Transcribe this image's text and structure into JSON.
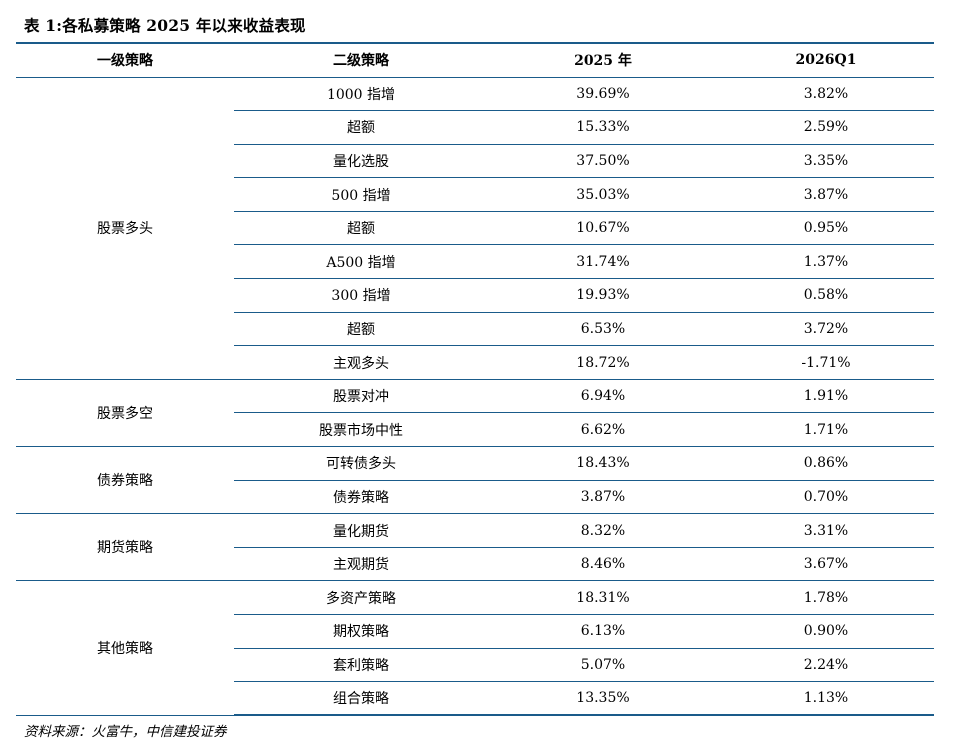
{
  "title": "表 1:各私募策略 2025 年以来收益表现",
  "headers": [
    "一级策略",
    "二级策略",
    "2025 年",
    "2026Q1"
  ],
  "groups": [
    {
      "name": "股票多头",
      "rows": [
        {
          "sub": "1000 指增",
          "y2025": "39.69%",
          "q1": "3.82%"
        },
        {
          "sub": "超额",
          "y2025": "15.33%",
          "q1": "2.59%"
        },
        {
          "sub": "量化选股",
          "y2025": "37.50%",
          "q1": "3.35%"
        },
        {
          "sub": "500 指增",
          "y2025": "35.03%",
          "q1": "3.87%"
        },
        {
          "sub": "超额",
          "y2025": "10.67%",
          "q1": "0.95%"
        },
        {
          "sub": "A500 指增",
          "y2025": "31.74%",
          "q1": "1.37%"
        },
        {
          "sub": "300 指增",
          "y2025": "19.93%",
          "q1": "0.58%"
        },
        {
          "sub": "超额",
          "y2025": "6.53%",
          "q1": "3.72%"
        },
        {
          "sub": "主观多头",
          "y2025": "18.72%",
          "q1": "-1.71%"
        }
      ]
    },
    {
      "name": "股票多空",
      "rows": [
        {
          "sub": "股票对冲",
          "y2025": "6.94%",
          "q1": "1.91%"
        },
        {
          "sub": "股票市场中性",
          "y2025": "6.62%",
          "q1": "1.71%"
        }
      ]
    },
    {
      "name": "债券策略",
      "rows": [
        {
          "sub": "可转债多头",
          "y2025": "18.43%",
          "q1": "0.86%"
        },
        {
          "sub": "债券策略",
          "y2025": "3.87%",
          "q1": "0.70%"
        }
      ]
    },
    {
      "name": "期货策略",
      "rows": [
        {
          "sub": "量化期货",
          "y2025": "8.32%",
          "q1": "3.31%"
        },
        {
          "sub": "主观期货",
          "y2025": "8.46%",
          "q1": "3.67%"
        }
      ]
    },
    {
      "name": "其他策略",
      "rows": [
        {
          "sub": "多资产策略",
          "y2025": "18.31%",
          "q1": "1.78%"
        },
        {
          "sub": "期权策略",
          "y2025": "6.13%",
          "q1": "0.90%"
        },
        {
          "sub": "套利策略",
          "y2025": "5.07%",
          "q1": "2.24%"
        },
        {
          "sub": "组合策略",
          "y2025": "13.35%",
          "q1": "1.13%"
        }
      ]
    }
  ],
  "source": "资料来源：火富牛，中信建投证券"
}
